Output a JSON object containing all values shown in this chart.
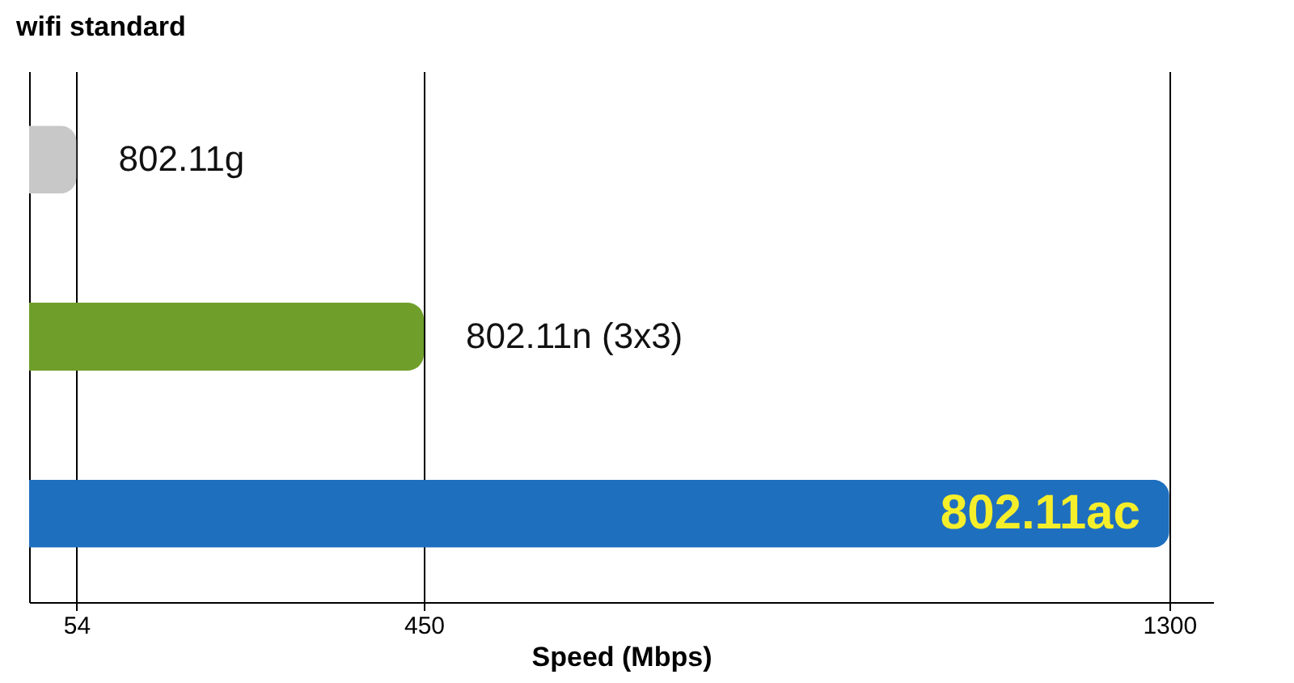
{
  "chart_data": {
    "type": "bar",
    "orientation": "horizontal",
    "ylabel": "wifi standard",
    "xlabel": "Speed (Mbps)",
    "categories": [
      "802.11g",
      "802.11n (3x3)",
      "802.11ac"
    ],
    "values": [
      54,
      450,
      1300
    ],
    "colors": [
      "#c8c8c8",
      "#6f9f2a",
      "#1f6fbf"
    ],
    "xlim": [
      0,
      1350
    ],
    "xticks": [
      54,
      450,
      1300
    ],
    "grid": "x"
  }
}
